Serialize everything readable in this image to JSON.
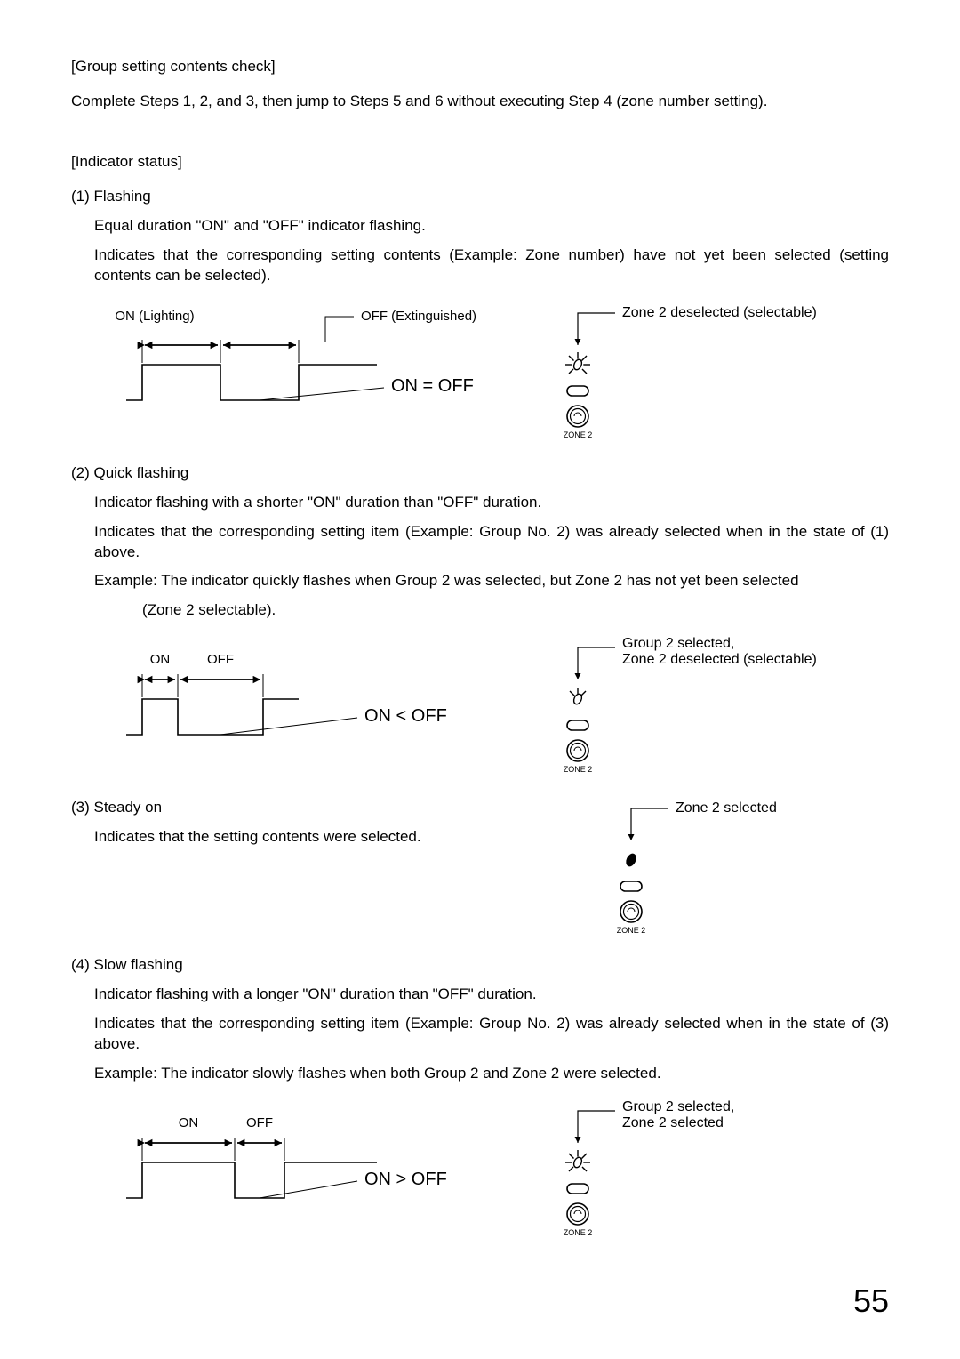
{
  "heading1": "[Group setting contents check]",
  "p1": "Complete Steps 1, 2, and 3, then jump to Steps 5 and 6 without executing Step 4 (zone number setting).",
  "heading2": "[Indicator status]",
  "s1_title": "(1) Flashing",
  "s1_l1": "Equal duration \"ON\" and \"OFF\" indicator flashing.",
  "s1_l2": "Indicates that the corresponding setting contents (Example: Zone number) have not yet been selected (setting contents can be selected).",
  "fig1": {
    "on_label": "ON (Lighting)",
    "off_label": "OFF (Extinguished)",
    "relation": "ON = OFF",
    "callout": "Zone 2 deselected (selectable)",
    "zone_label": "ZONE 2",
    "on_width": 88,
    "off_width": 88
  },
  "s2_title": "(2) Quick flashing",
  "s2_l1": "Indicator flashing with a shorter \"ON\" duration than \"OFF\" duration.",
  "s2_l2": "Indicates that the corresponding setting item (Example: Group No. 2) was already selected when in the state of (1) above.",
  "s2_l3": "Example: The indicator quickly flashes when Group 2 was selected, but Zone 2 has not yet been selected",
  "s2_l3b": "(Zone 2 selectable).",
  "fig2": {
    "on_label": "ON",
    "off_label": "OFF",
    "relation": "ON < OFF",
    "callout": "Group 2 selected, Zone 2 deselected (selectable)",
    "zone_label": "ZONE 2",
    "on_width": 40,
    "off_width": 96
  },
  "s3_title": "(3) Steady on",
  "s3_l1": "Indicates that the setting contents were selected.",
  "fig3": {
    "callout": "Zone 2 selected",
    "zone_label": "ZONE 2"
  },
  "s4_title": "(4) Slow flashing",
  "s4_l1": "Indicator flashing with a longer \"ON\" duration than \"OFF\" duration.",
  "s4_l2": "Indicates that the corresponding setting item (Example: Group No. 2) was already selected when in the state of (3) above.",
  "s4_l3": "Example: The indicator slowly flashes when both Group 2 and Zone 2 were selected.",
  "fig4": {
    "on_label": "ON",
    "off_label": "OFF",
    "relation": "ON > OFF",
    "callout": "Group 2 selected, Zone 2 selected",
    "zone_label": "ZONE 2",
    "on_width": 104,
    "off_width": 56
  },
  "page_number": "55",
  "style": {
    "stroke": "#000000",
    "stroke_width": 1.6,
    "font_size_label": 15,
    "font_size_relation": 20,
    "font_size_zone": 9
  }
}
